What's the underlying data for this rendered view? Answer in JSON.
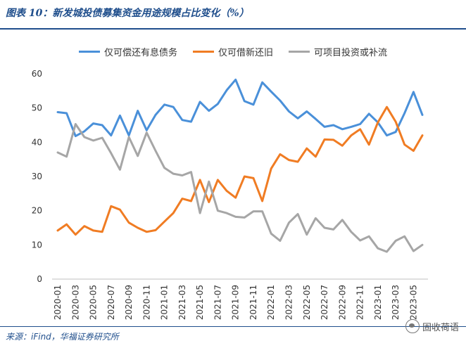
{
  "header": {
    "title": "图表 10：新发城投债募集资金用途规模占比变化（%）"
  },
  "footer": {
    "source": "来源：iFind，华福证券研究所",
    "watermark": "固收荷语"
  },
  "icons": {
    "watermark": "wechat-icon"
  },
  "chart_data": {
    "type": "line",
    "title": "",
    "xlabel": "",
    "ylabel": "",
    "ylim": [
      0,
      60
    ],
    "yticks": [
      0,
      10,
      20,
      30,
      40,
      50,
      60
    ],
    "grid": false,
    "legend_position": "top",
    "x": [
      "2020-01",
      "2020-02",
      "2020-03",
      "2020-04",
      "2020-05",
      "2020-06",
      "2020-07",
      "2020-08",
      "2020-09",
      "2020-10",
      "2020-11",
      "2020-12",
      "2021-01",
      "2021-02",
      "2021-03",
      "2021-04",
      "2021-05",
      "2021-06",
      "2021-07",
      "2021-08",
      "2021-09",
      "2021-10",
      "2021-11",
      "2021-12",
      "2022-01",
      "2022-02",
      "2022-03",
      "2022-04",
      "2022-05",
      "2022-06",
      "2022-07",
      "2022-08",
      "2022-09",
      "2022-10",
      "2022-11",
      "2022-12",
      "2023-01",
      "2023-02",
      "2023-03",
      "2023-04",
      "2023-05",
      "2023-06"
    ],
    "xtick_labels": [
      "2020-01",
      "2020-03",
      "2020-05",
      "2020-07",
      "2020-09",
      "2020-11",
      "2021-01",
      "2021-03",
      "2021-05",
      "2021-07",
      "2021-09",
      "2021-11",
      "2022-01",
      "2022-03",
      "2022-05",
      "2022-07",
      "2022-09",
      "2022-11",
      "2023-01",
      "2023-03",
      "2023-05"
    ],
    "series": [
      {
        "name": "仅可偿还有息债务",
        "color": "#4a90d9",
        "values": [
          48.8,
          48.5,
          41.8,
          43.2,
          45.5,
          45.0,
          42.0,
          47.8,
          42.0,
          49.2,
          43.5,
          48.0,
          51.0,
          50.3,
          46.5,
          46.0,
          51.8,
          49.2,
          51.2,
          55.2,
          58.3,
          52.0,
          51.0,
          57.5,
          54.8,
          52.2,
          49.0,
          47.0,
          49.0,
          46.8,
          44.5,
          45.0,
          43.8,
          44.5,
          45.3,
          48.3,
          45.8,
          42.0,
          43.0,
          48.5,
          54.7,
          48.0
        ]
      },
      {
        "name": "仅可借新还旧",
        "color": "#f07c23",
        "values": [
          14.2,
          16.0,
          13.0,
          15.5,
          14.2,
          13.8,
          21.3,
          20.3,
          16.5,
          15.0,
          13.8,
          14.3,
          16.8,
          19.3,
          23.5,
          22.8,
          29.0,
          22.5,
          29.0,
          25.8,
          23.8,
          30.0,
          29.5,
          22.8,
          32.3,
          36.5,
          34.8,
          34.3,
          38.2,
          35.8,
          40.8,
          40.7,
          39.0,
          42.0,
          43.8,
          39.3,
          45.8,
          50.3,
          46.0,
          39.3,
          37.5,
          42.0
        ]
      },
      {
        "name": "可项目投资或补流",
        "color": "#a6a6a6",
        "values": [
          37.0,
          35.8,
          45.3,
          41.5,
          40.5,
          41.3,
          36.8,
          32.0,
          41.5,
          36.0,
          42.8,
          37.5,
          32.5,
          30.8,
          30.3,
          31.3,
          19.3,
          28.5,
          20.0,
          19.3,
          18.2,
          18.0,
          19.8,
          19.8,
          13.3,
          11.2,
          16.5,
          19.0,
          13.0,
          17.8,
          15.0,
          14.5,
          17.3,
          13.8,
          11.3,
          12.5,
          9.0,
          8.0,
          11.2,
          12.5,
          8.2,
          10.0
        ]
      }
    ]
  }
}
